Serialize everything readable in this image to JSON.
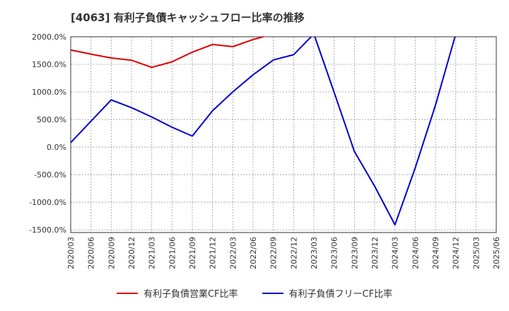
{
  "title": "[4063]  有利子負債キャッシュフロー比率の推移",
  "chart_data": {
    "type": "line",
    "title": "[4063]  有利子負債キャッシュフロー比率の推移",
    "xlabel": "",
    "ylabel": "",
    "x": [
      "2020/03",
      "2020/06",
      "2020/09",
      "2020/12",
      "2021/03",
      "2021/06",
      "2021/09",
      "2021/12",
      "2022/03",
      "2022/06",
      "2022/09",
      "2022/12",
      "2023/03",
      "2023/06",
      "2023/09",
      "2023/12",
      "2024/03",
      "2024/06",
      "2024/09",
      "2024/12",
      "2025/03",
      "2025/06"
    ],
    "ylim": [
      -1550,
      2000
    ],
    "yticks": [
      2000,
      1500,
      1000,
      500,
      0,
      -500,
      -1000,
      -1500
    ],
    "ytick_labels": [
      "2000.0%",
      "1500.0%",
      "1000.0%",
      "500.0%",
      "0.0%",
      "-500.0%",
      "-1000.0%",
      "-1500.0%"
    ],
    "grid": true,
    "legend_position": "bottom",
    "series": [
      {
        "name": "有利子負債営業CF比率",
        "color": "#dd0000",
        "values": [
          1760,
          1685,
          1615,
          1575,
          1445,
          1545,
          1720,
          1860,
          1820,
          1950,
          2050,
          2150,
          null,
          null,
          null,
          null,
          null,
          null,
          null,
          null,
          null,
          null
        ]
      },
      {
        "name": "有利子負債フリーCF比率",
        "color": "#0000cc",
        "values": [
          80,
          470,
          855,
          715,
          545,
          360,
          200,
          660,
          1000,
          1310,
          1580,
          1675,
          2050,
          990,
          -80,
          -710,
          -1410,
          -380,
          760,
          2050,
          null,
          null
        ]
      }
    ]
  }
}
